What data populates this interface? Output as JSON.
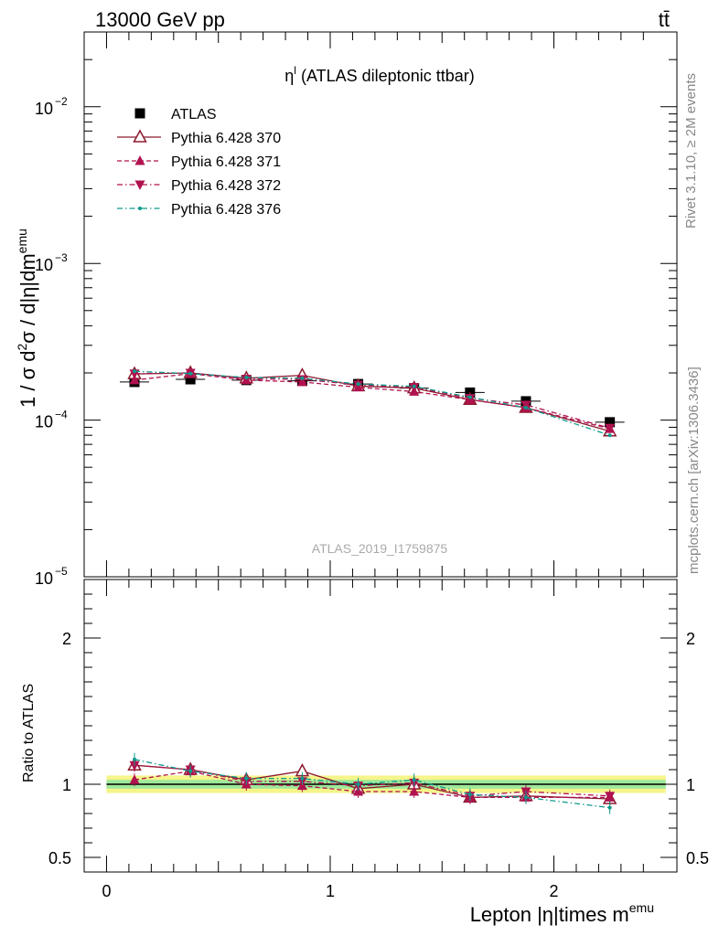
{
  "header": {
    "left": "13000 GeV pp",
    "right": "tt̄"
  },
  "side_labels": {
    "rivet": "Rivet 3.1.10, ≥ 2M events",
    "source": "mcplots.cern.ch [arXiv:1306.3436]"
  },
  "chart_data": [
    {
      "type": "scatter",
      "panel": "main",
      "title_main": "η",
      "title_sup": "l",
      "title_rest": " (ATLAS dileptonic ttbar)",
      "ylabel": "1 / σ d²σ / d|η|dm^emu",
      "yscale": "log",
      "ylim": [
        1e-05,
        0.03
      ],
      "xlim": [
        -0.1,
        2.55
      ],
      "x": [
        0.125,
        0.375,
        0.625,
        0.875,
        1.125,
        1.375,
        1.625,
        1.875,
        2.25
      ],
      "watermark": "ATLAS_2019_I1759875",
      "y_ticks": [
        {
          "label": "10",
          "exp": "−2",
          "value": 0.01
        },
        {
          "label": "10",
          "exp": "−3",
          "value": 0.001
        },
        {
          "label": "10",
          "exp": "−4",
          "value": 0.0001
        },
        {
          "label": "10",
          "exp": "−5",
          "value": 1e-05
        }
      ],
      "legend_position": "top-left",
      "series": [
        {
          "name": "ATLAS",
          "color": "#000000",
          "marker": "square",
          "values": [
            0.000175,
            0.000182,
            0.00018,
            0.000178,
            0.00017,
            0.00016,
            0.00015,
            0.000132,
            9.7e-05
          ]
        },
        {
          "name": "Pythia 6.428 370",
          "color": "#8b1a2e",
          "marker": "triangle-up-open",
          "line": "solid",
          "values": [
            0.000197,
            0.0002,
            0.000185,
            0.000193,
            0.000165,
            0.00016,
            0.000135,
            0.00012,
            8.5e-05
          ]
        },
        {
          "name": "Pythia 6.428 371",
          "color": "#b0124f",
          "marker": "triangle-up",
          "line": "dashed",
          "values": [
            0.00018,
            0.000198,
            0.00018,
            0.000175,
            0.000162,
            0.000152,
            0.000135,
            0.00012,
            8.8e-05
          ]
        },
        {
          "name": "Pythia 6.428 372",
          "color": "#b0124f",
          "marker": "triangle-down",
          "line": "dashdot",
          "values": [
            0.000198,
            0.0002,
            0.000183,
            0.000182,
            0.000168,
            0.000162,
            0.000138,
            0.000125,
            8.9e-05
          ]
        },
        {
          "name": "Pythia 6.428 376",
          "color": "#0e9a8c",
          "marker": "dot",
          "line": "dashdot",
          "values": [
            0.000205,
            0.000198,
            0.000187,
            0.000185,
            0.00017,
            0.000164,
            0.00014,
            0.00012,
            8e-05
          ]
        }
      ]
    },
    {
      "type": "scatter",
      "panel": "ratio",
      "ylabel": "Ratio to ATLAS",
      "xlabel_main": "Lepton |η|times m",
      "xlabel_sup": "emu",
      "ylim": [
        0.4,
        2.4
      ],
      "xlim": [
        -0.1,
        2.55
      ],
      "x": [
        0.125,
        0.375,
        0.625,
        0.875,
        1.125,
        1.375,
        1.625,
        1.875,
        2.25
      ],
      "x_ticks": [
        "0",
        "1",
        "2"
      ],
      "y_ticks": [
        "0.5",
        "1",
        "2"
      ],
      "band": {
        "yellow": [
          0.94,
          1.06
        ],
        "green": [
          0.97,
          1.03
        ]
      },
      "series": [
        {
          "name": "Pythia 6.428 370",
          "values": [
            1.13,
            1.1,
            1.03,
            1.09,
            0.97,
            1.0,
            0.91,
            0.92,
            0.9
          ]
        },
        {
          "name": "Pythia 6.428 371",
          "values": [
            1.03,
            1.09,
            1.0,
            0.99,
            0.95,
            0.95,
            0.91,
            0.91,
            0.91
          ]
        },
        {
          "name": "Pythia 6.428 372",
          "values": [
            1.13,
            1.1,
            1.02,
            1.02,
            0.99,
            1.01,
            0.92,
            0.95,
            0.92
          ]
        },
        {
          "name": "Pythia 6.428 376",
          "values": [
            1.17,
            1.09,
            1.04,
            1.04,
            1.0,
            1.03,
            0.93,
            0.91,
            0.84
          ]
        }
      ]
    }
  ]
}
